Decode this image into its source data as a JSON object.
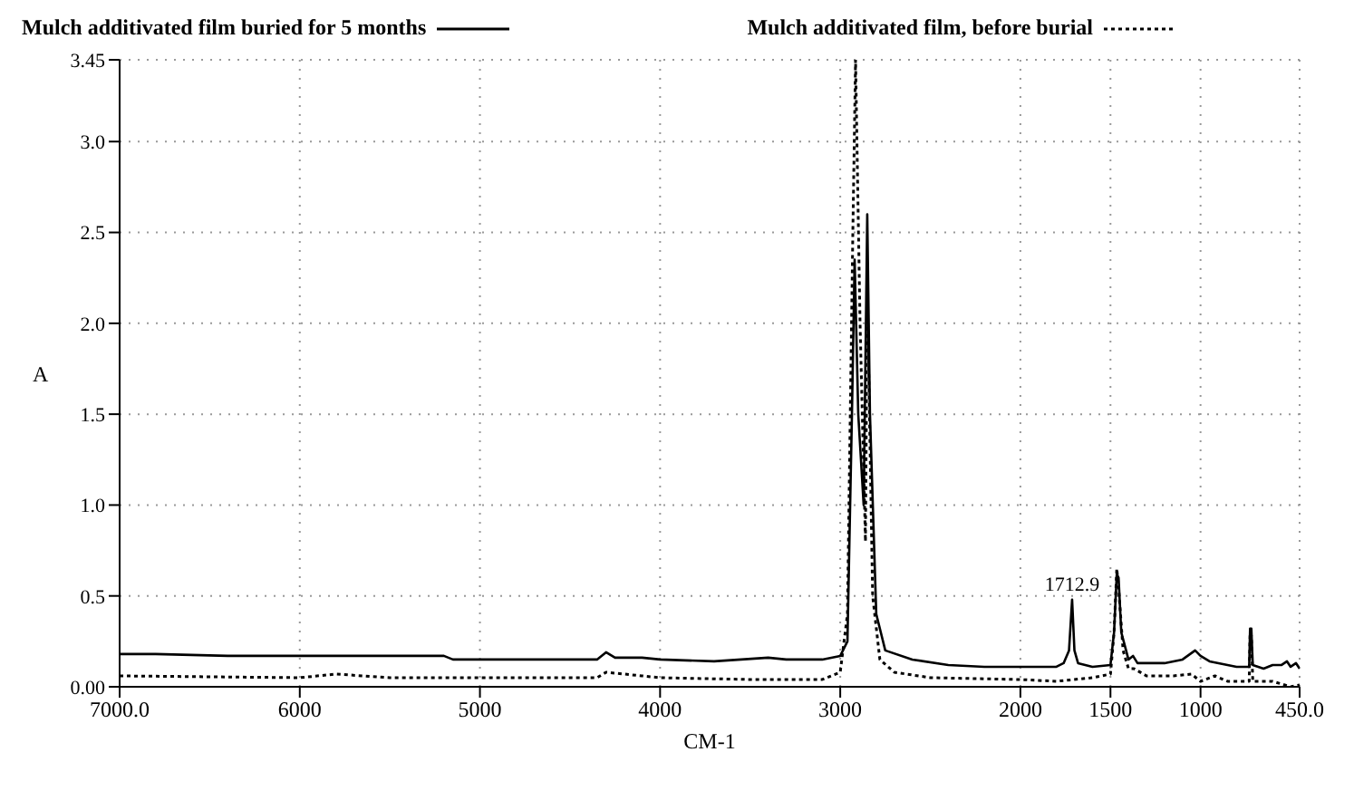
{
  "chart_data": {
    "type": "line",
    "xlabel": "CM-1",
    "ylabel": "A",
    "xlim": [
      7000,
      450
    ],
    "ylim": [
      0,
      3.45
    ],
    "xticks": [
      {
        "value": 7000,
        "label": "7000.0"
      },
      6000,
      5000,
      4000,
      3000,
      2000,
      1500,
      1000,
      {
        "value": 450,
        "label": "450.0"
      }
    ],
    "yticks": [
      {
        "value": 0,
        "label": "0.00"
      },
      {
        "value": 0.5,
        "label": "0.5"
      },
      {
        "value": 1,
        "label": "1.0"
      },
      {
        "value": 1.5,
        "label": "1.5"
      },
      {
        "value": 2,
        "label": "2.0"
      },
      {
        "value": 2.5,
        "label": "2.5"
      },
      {
        "value": 3,
        "label": "3.0"
      },
      3.45
    ],
    "grid": true,
    "legend": "top",
    "marker": "none",
    "annotations": [
      {
        "text": "1712.9",
        "x": 1712.9,
        "y": 0.48
      }
    ],
    "series": [
      {
        "name": "Mulch additivated film buried for 5 months",
        "color": "#000000",
        "line_style": "solid",
        "x": [
          7000,
          6800,
          6400,
          6000,
          5800,
          5200,
          5150,
          4800,
          4350,
          4300,
          4250,
          4100,
          4000,
          3700,
          3400,
          3300,
          3100,
          3000,
          2960,
          2935,
          2920,
          2900,
          2870,
          2850,
          2835,
          2800,
          2750,
          2600,
          2400,
          2200,
          1800,
          1760,
          1730,
          1712.9,
          1700,
          1680,
          1600,
          1500,
          1480,
          1465,
          1455,
          1440,
          1400,
          1375,
          1350,
          1200,
          1100,
          1030,
          1000,
          950,
          800,
          730,
          725,
          718,
          710,
          650,
          600,
          550,
          520,
          500,
          470,
          450
        ],
        "values": [
          0.18,
          0.18,
          0.17,
          0.17,
          0.17,
          0.17,
          0.15,
          0.15,
          0.15,
          0.19,
          0.16,
          0.16,
          0.15,
          0.14,
          0.16,
          0.15,
          0.15,
          0.17,
          0.25,
          1.5,
          2.35,
          1.5,
          1.0,
          2.6,
          1.5,
          0.4,
          0.2,
          0.15,
          0.12,
          0.11,
          0.11,
          0.13,
          0.2,
          0.48,
          0.2,
          0.13,
          0.11,
          0.12,
          0.3,
          0.62,
          0.6,
          0.3,
          0.15,
          0.17,
          0.13,
          0.13,
          0.15,
          0.2,
          0.17,
          0.14,
          0.11,
          0.11,
          0.32,
          0.32,
          0.12,
          0.1,
          0.12,
          0.12,
          0.14,
          0.11,
          0.13,
          0.1
        ]
      },
      {
        "name": "Mulch additivated film, before burial",
        "color": "#000000",
        "line_style": "dotted",
        "x": [
          7000,
          6000,
          5800,
          5500,
          5000,
          4350,
          4300,
          4100,
          4000,
          3500,
          3100,
          3000,
          2960,
          2930,
          2915,
          2890,
          2860,
          2850,
          2820,
          2780,
          2700,
          2500,
          2000,
          1800,
          1600,
          1500,
          1480,
          1465,
          1455,
          1430,
          1400,
          1370,
          1300,
          1150,
          1050,
          1000,
          920,
          850,
          730,
          725,
          718,
          710,
          600,
          500,
          450
        ],
        "values": [
          0.06,
          0.05,
          0.07,
          0.05,
          0.05,
          0.05,
          0.08,
          0.06,
          0.05,
          0.04,
          0.04,
          0.08,
          0.4,
          2.5,
          3.45,
          2.0,
          0.8,
          2.2,
          0.5,
          0.15,
          0.08,
          0.05,
          0.04,
          0.03,
          0.05,
          0.07,
          0.3,
          0.65,
          0.55,
          0.2,
          0.1,
          0.1,
          0.06,
          0.06,
          0.07,
          0.03,
          0.06,
          0.03,
          0.03,
          0.3,
          0.28,
          0.03,
          0.03,
          0.0,
          0.01
        ]
      }
    ]
  }
}
